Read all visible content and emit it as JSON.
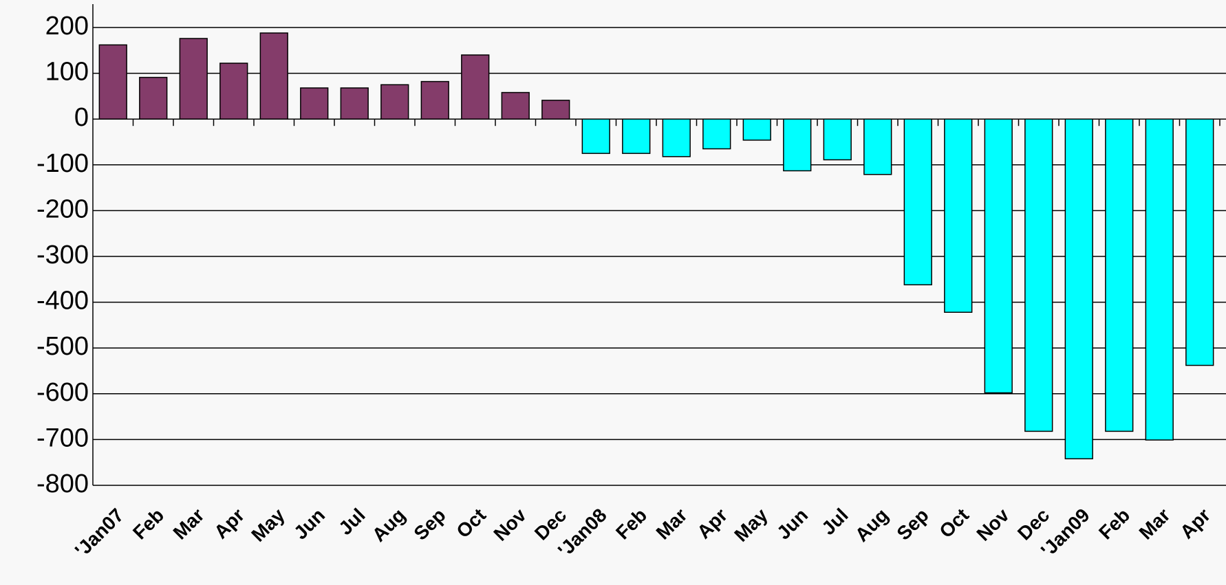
{
  "chart_data": {
    "type": "bar",
    "categories": [
      "'Jan07",
      "Feb",
      "Mar",
      "Apr",
      "May",
      "Jun",
      "Jul",
      "Aug",
      "Sep",
      "Oct",
      "Nov",
      "Dec",
      "'Jan08",
      "Feb",
      "Mar",
      "Apr",
      "May",
      "Jun",
      "Jul",
      "Aug",
      "Sep",
      "Oct",
      "Nov",
      "Dec",
      "'Jan09",
      "Feb",
      "Mar",
      "Apr"
    ],
    "values": [
      162,
      91,
      176,
      122,
      188,
      68,
      68,
      75,
      82,
      140,
      58,
      41,
      -75,
      -75,
      -82,
      -65,
      -46,
      -113,
      -89,
      -121,
      -362,
      -422,
      -598,
      -682,
      -742,
      -682,
      -701,
      -538
    ],
    "colors": {
      "positive": "#843c6a",
      "negative": "#00ffff"
    },
    "ylim": [
      -800,
      200
    ],
    "yticks": [
      -800,
      -700,
      -600,
      -500,
      -400,
      -300,
      -200,
      -100,
      0,
      100,
      200
    ],
    "grid": true
  }
}
